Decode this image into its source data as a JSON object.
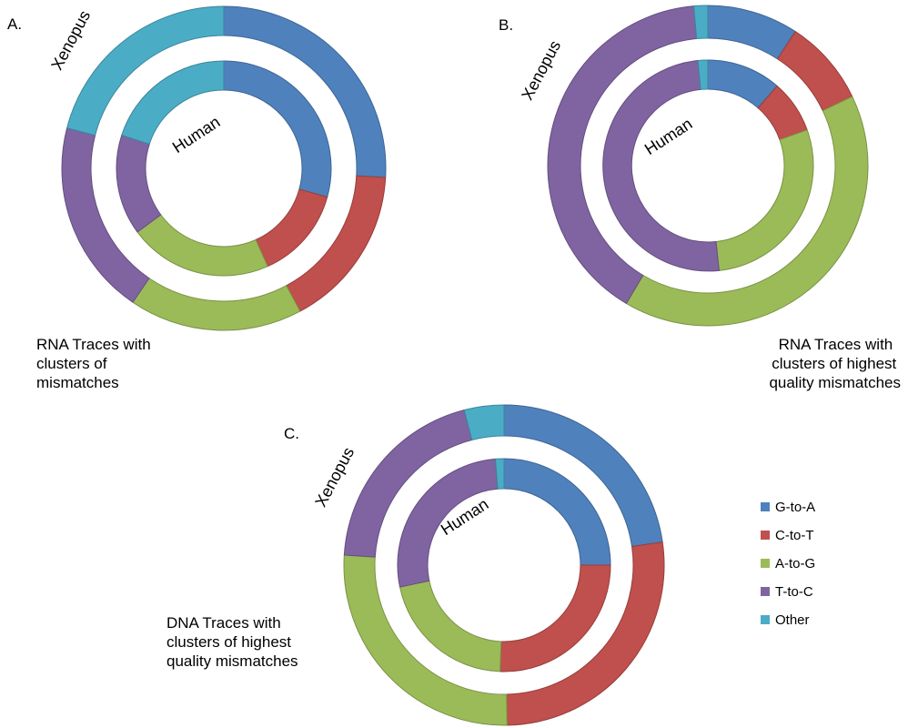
{
  "colors": {
    "G-to-A": "#4f81bd",
    "C-to-T": "#c0504d",
    "A-to-G": "#9bbb59",
    "T-to-C": "#8064a2",
    "Other": "#4bacc6"
  },
  "legend": {
    "items": [
      "G-to-A",
      "C-to-T",
      "A-to-G",
      "T-to-C",
      "Other"
    ]
  },
  "chart_data": [
    {
      "type": "donut",
      "panel": "A.",
      "caption": [
        "RNA Traces with",
        "clusters of",
        "mismatches"
      ],
      "categories": [
        "G-to-A",
        "C-to-T",
        "A-to-G",
        "T-to-C",
        "Other"
      ],
      "series": [
        {
          "name": "Human",
          "values": [
            29.3,
            14.0,
            21.6,
            15.1,
            20.0
          ]
        },
        {
          "name": "Xenopus",
          "values": [
            25.9,
            16.3,
            17.3,
            19.5,
            21.0
          ]
        }
      ]
    },
    {
      "type": "donut",
      "panel": "B.",
      "caption": [
        "RNA Traces with",
        " clusters of highest",
        "quality mismatches"
      ],
      "categories": [
        "G-to-A",
        "C-to-T",
        "A-to-G",
        "T-to-C",
        "Other"
      ],
      "series": [
        {
          "name": "Human",
          "values": [
            11.4,
            8.1,
            28.8,
            50.2,
            1.5
          ]
        },
        {
          "name": "Xenopus",
          "values": [
            9.2,
            8.7,
            40.6,
            40.1,
            1.4
          ]
        }
      ]
    },
    {
      "type": "donut",
      "panel": "C.",
      "caption": [
        "DNA Traces with",
        "clusters of highest",
        "quality mismatches"
      ],
      "categories": [
        "G-to-A",
        "C-to-T",
        "A-to-G",
        "T-to-C",
        "Other"
      ],
      "series": [
        {
          "name": "Human",
          "values": [
            25.0,
            25.6,
            21.1,
            27.0,
            1.3
          ]
        },
        {
          "name": "Xenopus",
          "values": [
            22.7,
            27.0,
            26.3,
            20.0,
            4.0
          ]
        }
      ]
    }
  ]
}
